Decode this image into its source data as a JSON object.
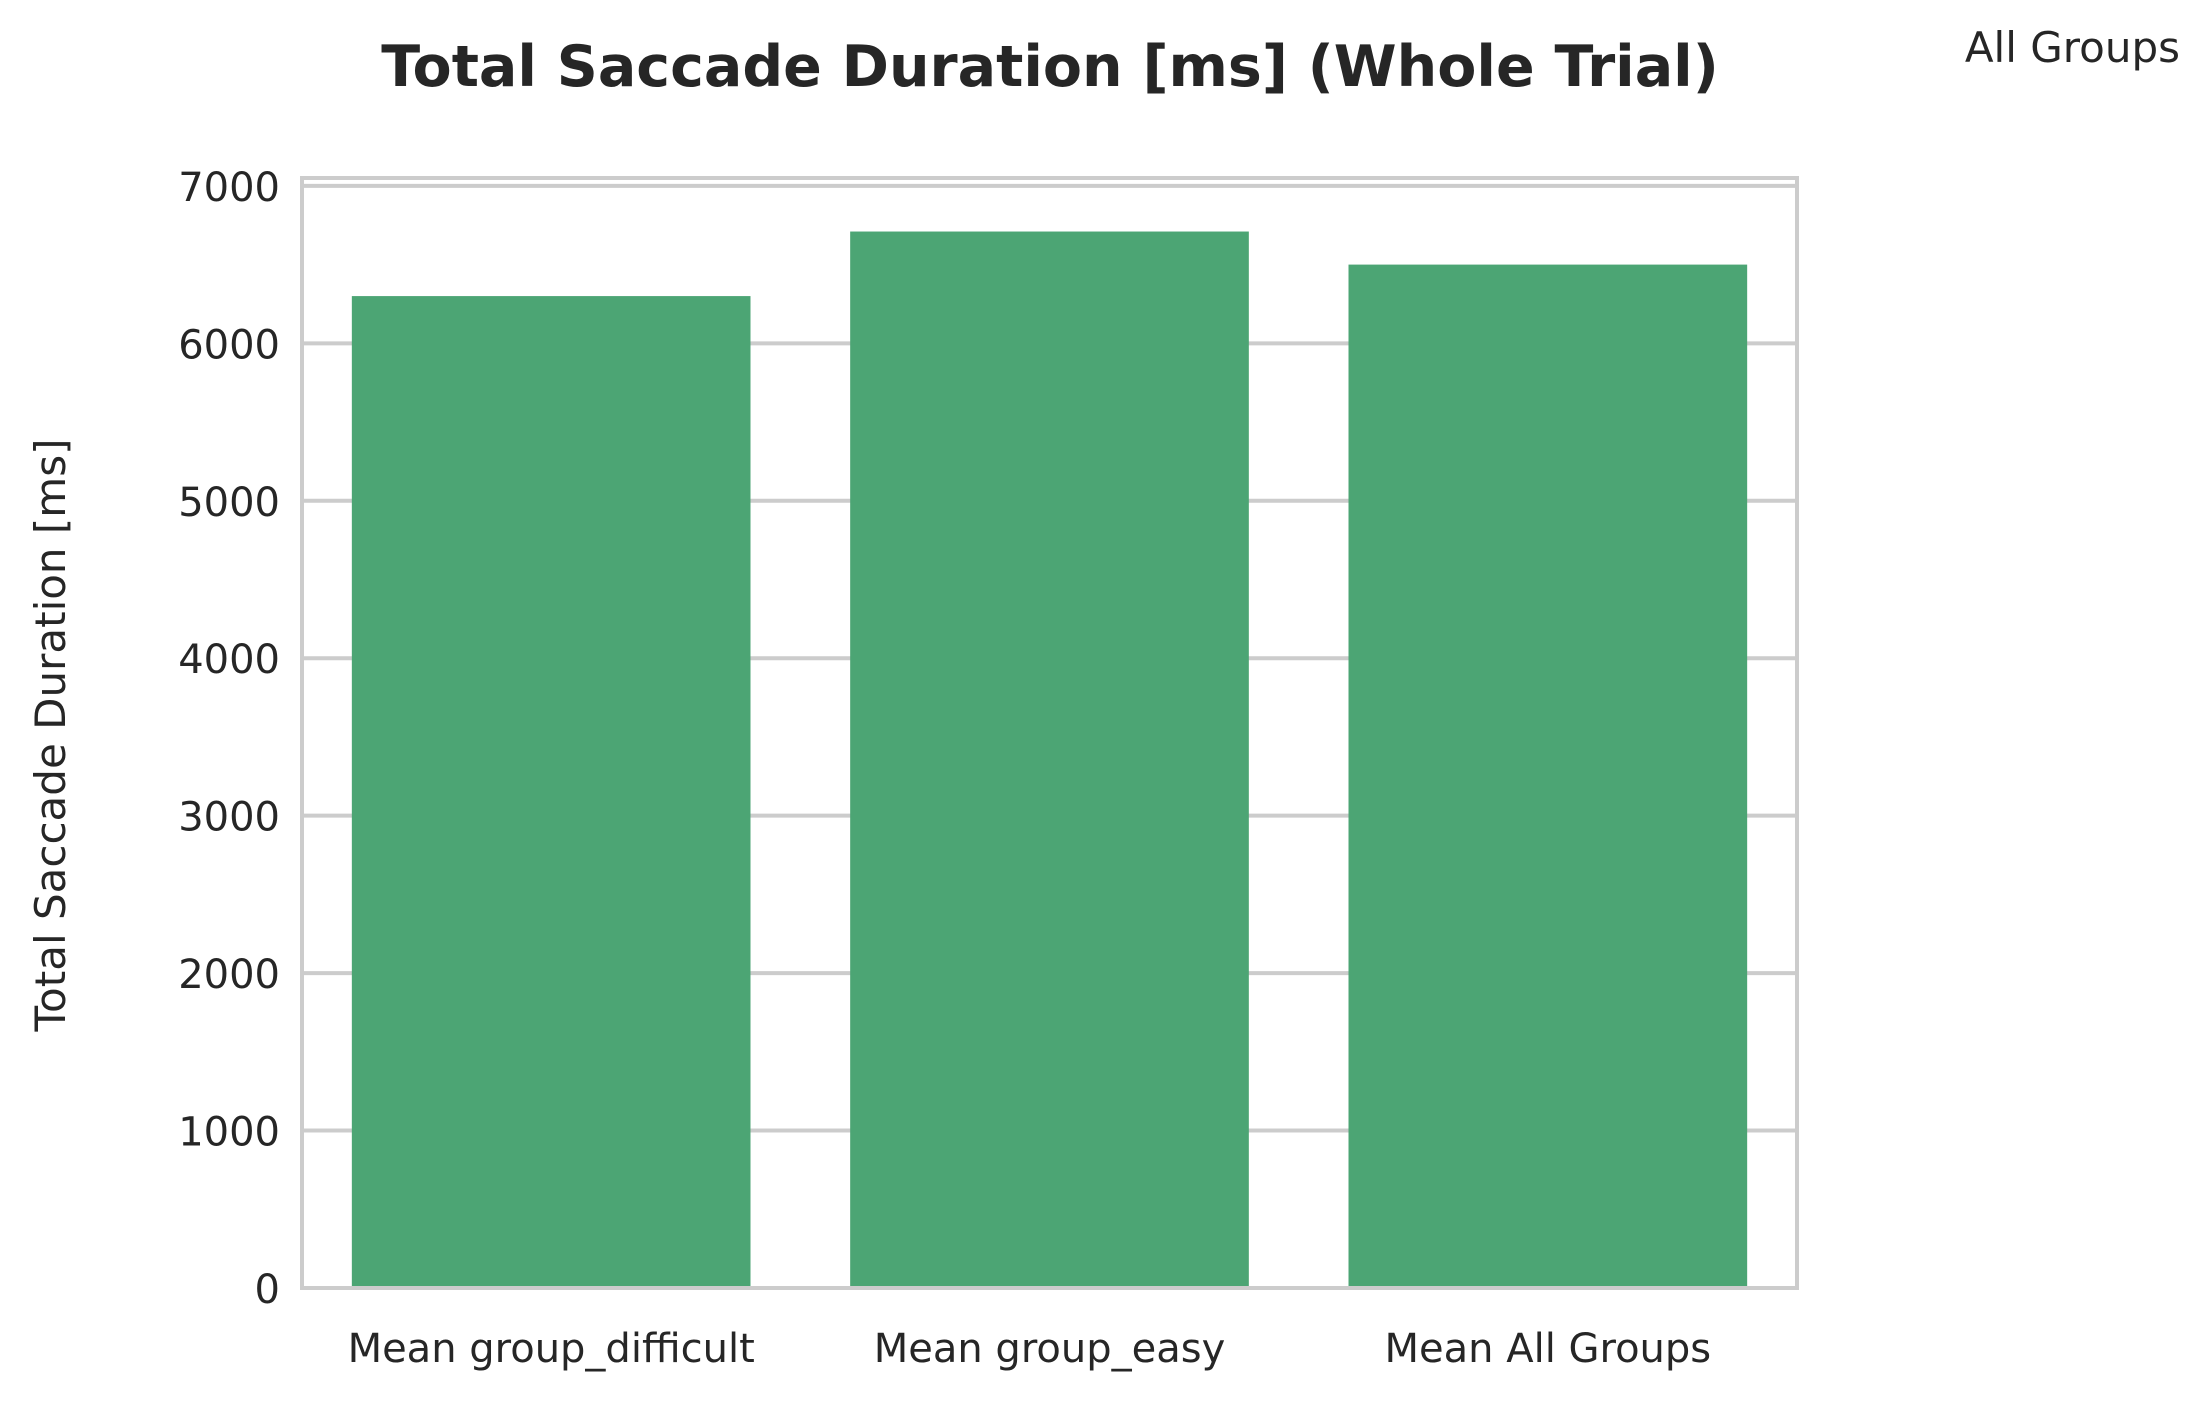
{
  "chart_data": {
    "type": "bar",
    "title": "Total Saccade Duration [ms] (Whole Trial)",
    "legend_text": "All Groups",
    "xlabel": "",
    "ylabel": "Total Saccade Duration [ms]",
    "categories": [
      "Mean group_difficult",
      "Mean group_easy",
      "Mean All Groups"
    ],
    "values": [
      6300,
      6710,
      6500
    ],
    "ylim": [
      0,
      7050
    ],
    "yticks": [
      0,
      1000,
      2000,
      3000,
      4000,
      5000,
      6000,
      7000
    ],
    "grid": "horizontal",
    "legend_placement": "top-right",
    "colors": {
      "bar": "#4ca574",
      "grid": "#cccccc",
      "spine": "#cccccc",
      "text": "#262626"
    }
  }
}
